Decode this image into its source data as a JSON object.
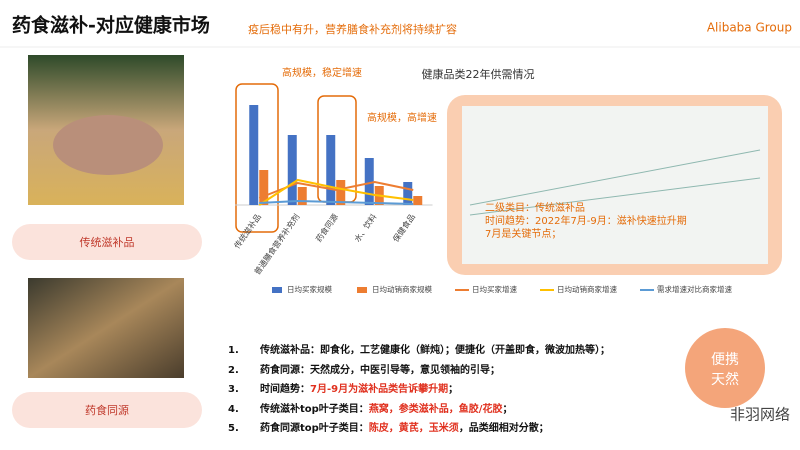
{
  "header": {
    "title": "药食滋补-对应健康市场",
    "subtitle": "疫后稳中有升，营养膳食补充剂将持续扩容",
    "logo": "Alibaba Group"
  },
  "cards": [
    {
      "label": "传统滋补品"
    },
    {
      "label": "药食同源"
    }
  ],
  "chart": {
    "type": "bar",
    "title": "健康品类22年供需情况",
    "categories": [
      "传统滋补品",
      "普通膳食营养补充剂",
      "药食同源",
      "水、饮料",
      "保健食品"
    ],
    "ylim": [
      0,
      100
    ],
    "series": [
      {
        "name": "日均买家规模",
        "kind": "bar",
        "color": "#4472c4",
        "values": [
          100,
          70,
          70,
          47,
          23
        ]
      },
      {
        "name": "日均动销商家规模",
        "kind": "bar",
        "color": "#ed7d31",
        "values": [
          35,
          18,
          25,
          19,
          9
        ]
      },
      {
        "name": "日均买家增速",
        "kind": "line",
        "color": "#ed7d31",
        "values": [
          7,
          22,
          15,
          23,
          15
        ]
      },
      {
        "name": "日均动销商家增速",
        "kind": "line",
        "color": "#ffc000",
        "values": [
          0,
          25,
          17,
          10,
          5
        ]
      },
      {
        "name": "需求增速对比商家增速",
        "kind": "line",
        "color": "#5b9bd5",
        "values": [
          2,
          4,
          3,
          2,
          1
        ]
      }
    ],
    "annotations": [
      "高规模，稳定增速",
      "高规模，高增速"
    ]
  },
  "overlay": {
    "lines": [
      "二级类目：传统滋补品",
      "时间趋势：2022年7月-9月：滋补快速拉升期",
      "7月是关键节点；"
    ]
  },
  "list": [
    {
      "num": "1.",
      "parts": [
        {
          "text": "传统滋补品：即食化，工艺健康化（鲜炖）；便捷化（开盖即食，微波加热等）；",
          "highlight": false
        }
      ]
    },
    {
      "num": "2.",
      "parts": [
        {
          "text": "药食同源：天然成分，中医引导等，意见领袖的引导；",
          "highlight": false
        }
      ]
    },
    {
      "num": "3.",
      "parts": [
        {
          "text": "时间趋势：",
          "highlight": false
        },
        {
          "text": "7月-9月为滋补品类告诉攀升期",
          "highlight": true
        },
        {
          "text": "；",
          "highlight": false
        }
      ]
    },
    {
      "num": "4.",
      "parts": [
        {
          "text": "传统滋补top叶子类目：",
          "highlight": false
        },
        {
          "text": "燕窝，参类滋补品，鱼胶/花胶",
          "highlight": true
        },
        {
          "text": "；",
          "highlight": false
        }
      ]
    },
    {
      "num": "5.",
      "parts": [
        {
          "text": "药食同源top叶子类目：",
          "highlight": false
        },
        {
          "text": "陈皮，黄芪，玉米须",
          "highlight": true
        },
        {
          "text": "，品类细相对分散；",
          "highlight": false
        }
      ]
    }
  ],
  "badge": {
    "lines": [
      "便携",
      "天然"
    ]
  },
  "watermark": "非羽网络"
}
